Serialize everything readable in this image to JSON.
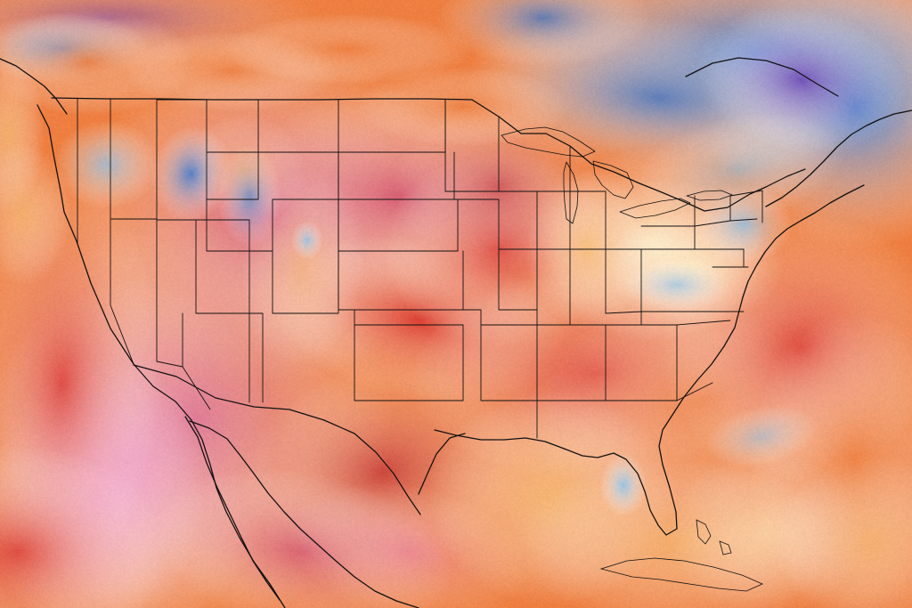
{
  "map": {
    "type": "temperature-anomaly-heatmap",
    "region": "north-america",
    "legend": "none",
    "labels": "none",
    "palette": {
      "deep_purple": "#6b3fb4",
      "blue": "#3a74c8",
      "light_blue": "#8ec3ea",
      "cream": "#fff1c8",
      "light_orange": "#f7c07a",
      "orange": "#ee7f41",
      "red": "#d8322f",
      "deep_red": "#b5233c",
      "magenta": "#cf4b72",
      "pink": "#e77bb4",
      "light_pink": "#f4a4d3"
    },
    "warm_areas": [
      "western-us",
      "plains",
      "southwest",
      "mexico",
      "pacific"
    ],
    "cool_areas": [
      "northern-canada",
      "northeast-canada",
      "northern-rockies",
      "appalachians",
      "florida-peninsula"
    ]
  }
}
